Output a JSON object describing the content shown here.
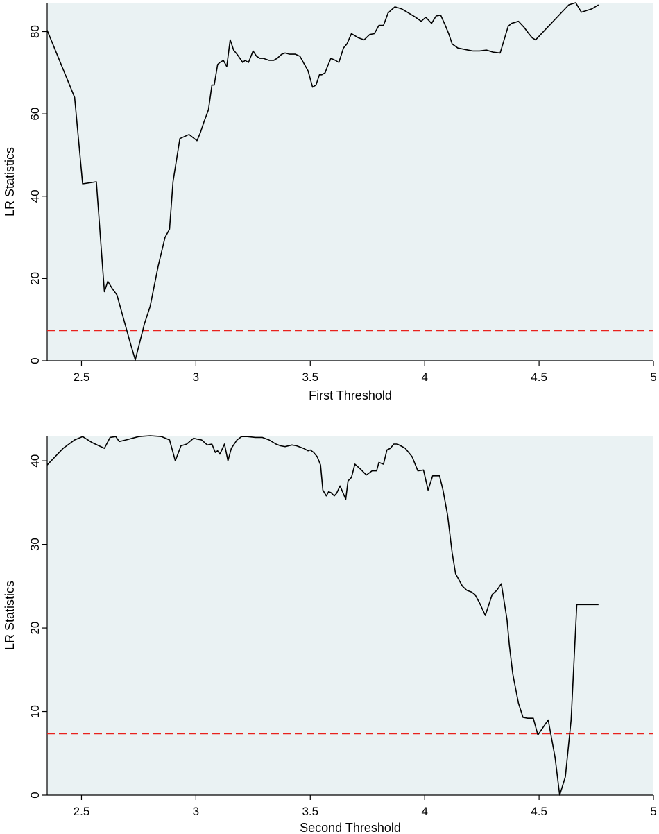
{
  "chart_data": [
    {
      "type": "line",
      "xlabel": "First Threshold",
      "ylabel": "LR Statistics",
      "xlim": [
        2.35,
        5.0
      ],
      "ylim": [
        0,
        87
      ],
      "xticks": [
        "2.5",
        "3",
        "3.5",
        "4",
        "4.5",
        "5"
      ],
      "yticks": [
        "0",
        "20",
        "40",
        "60",
        "80"
      ],
      "xtick_values": [
        2.5,
        3,
        3.5,
        4,
        4.5,
        5
      ],
      "ytick_values": [
        0,
        20,
        40,
        60,
        80
      ],
      "background_color": "#eaf2f3",
      "line_color": "#000000",
      "reference_line": {
        "y": 7.35,
        "color": "#e8221d",
        "style": "dashed"
      },
      "series": [
        {
          "x": [
            2.35,
            2.47,
            2.505,
            2.565,
            2.6,
            2.615,
            2.635,
            2.655,
            2.71,
            2.735,
            2.775,
            2.8,
            2.835,
            2.865,
            2.885,
            2.9,
            2.93,
            2.97,
            3.005,
            3.02,
            3.035,
            3.055,
            3.07,
            3.08,
            3.095,
            3.105,
            3.12,
            3.135,
            3.15,
            3.165,
            3.18,
            3.205,
            3.215,
            3.23,
            3.25,
            3.265,
            3.28,
            3.295,
            3.32,
            3.34,
            3.355,
            3.375,
            3.39,
            3.41,
            3.435,
            3.455,
            3.475,
            3.49,
            3.51,
            3.525,
            3.54,
            3.55,
            3.565,
            3.575,
            3.59,
            3.61,
            3.625,
            3.645,
            3.66,
            3.68,
            3.695,
            3.71,
            3.735,
            3.76,
            3.78,
            3.8,
            3.82,
            3.84,
            3.855,
            3.87,
            3.9,
            3.93,
            3.96,
            3.985,
            4.005,
            4.03,
            4.05,
            4.07,
            4.09,
            4.105,
            4.12,
            4.145,
            4.19,
            4.21,
            4.24,
            4.27,
            4.3,
            4.33,
            4.365,
            4.38,
            4.41,
            4.435,
            4.455,
            4.47,
            4.485,
            4.63,
            4.66,
            4.685,
            4.73,
            4.76
          ],
          "y": [
            80.3,
            64.0,
            43.0,
            43.5,
            16.8,
            19.3,
            17.5,
            16.0,
            5.0,
            0.2,
            9.0,
            13.2,
            23.0,
            30.0,
            32.0,
            43.5,
            54.0,
            55.0,
            53.5,
            55.5,
            58.0,
            61.0,
            67.0,
            67.0,
            72.0,
            72.5,
            73.0,
            71.5,
            78.0,
            75.5,
            74.5,
            72.5,
            73.0,
            72.5,
            75.3,
            74.0,
            73.5,
            73.5,
            73.0,
            73.0,
            73.5,
            74.5,
            74.8,
            74.5,
            74.5,
            74.0,
            72.0,
            70.5,
            66.5,
            67.0,
            69.5,
            69.5,
            70.0,
            71.5,
            73.5,
            73.0,
            72.5,
            76.0,
            77.0,
            79.5,
            79.0,
            78.5,
            78.0,
            79.3,
            79.5,
            81.5,
            81.5,
            84.5,
            85.3,
            86.0,
            85.5,
            84.5,
            83.5,
            82.5,
            83.5,
            82.0,
            83.8,
            84.0,
            81.5,
            79.5,
            77.0,
            76.0,
            75.5,
            75.3,
            75.3,
            75.5,
            75.0,
            74.8,
            81.3,
            82.0,
            82.5,
            81.0,
            79.5,
            78.5,
            78.0,
            86.5,
            87.0,
            84.7,
            85.5,
            86.5
          ]
        }
      ]
    },
    {
      "type": "line",
      "xlabel": "Second Threshold",
      "ylabel": "LR Statistics",
      "xlim": [
        2.35,
        5.0
      ],
      "ylim": [
        0,
        43
      ],
      "xticks": [
        "2.5",
        "3",
        "3.5",
        "4",
        "4.5",
        "5"
      ],
      "yticks": [
        "0",
        "10",
        "20",
        "30",
        "40"
      ],
      "xtick_values": [
        2.5,
        3,
        3.5,
        4,
        4.5,
        5
      ],
      "ytick_values": [
        0,
        10,
        20,
        30,
        40
      ],
      "background_color": "#eaf2f3",
      "line_color": "#000000",
      "reference_line": {
        "y": 7.35,
        "color": "#e8221d",
        "style": "dashed"
      },
      "series": [
        {
          "x": [
            2.35,
            2.42,
            2.47,
            2.505,
            2.545,
            2.6,
            2.625,
            2.65,
            2.665,
            2.695,
            2.75,
            2.8,
            2.85,
            2.885,
            2.91,
            2.935,
            2.96,
            2.99,
            3.005,
            3.025,
            3.05,
            3.07,
            3.085,
            3.095,
            3.105,
            3.125,
            3.14,
            3.155,
            3.18,
            3.2,
            3.225,
            3.26,
            3.29,
            3.32,
            3.35,
            3.37,
            3.39,
            3.42,
            3.44,
            3.47,
            3.49,
            3.5,
            3.515,
            3.53,
            3.545,
            3.555,
            3.57,
            3.58,
            3.59,
            3.605,
            3.615,
            3.63,
            3.655,
            3.665,
            3.68,
            3.695,
            3.72,
            3.745,
            3.77,
            3.79,
            3.8,
            3.82,
            3.835,
            3.85,
            3.865,
            3.88,
            3.895,
            3.915,
            3.945,
            3.97,
            3.995,
            4.015,
            4.035,
            4.05,
            4.065,
            4.08,
            4.1,
            4.12,
            4.135,
            4.145,
            4.165,
            4.185,
            4.205,
            4.22,
            4.24,
            4.265,
            4.295,
            4.315,
            4.335,
            4.36,
            4.37,
            4.385,
            4.41,
            4.43,
            4.45,
            4.475,
            4.495,
            4.515,
            4.54,
            4.57,
            4.59,
            4.615,
            4.64,
            4.665,
            4.69,
            4.72,
            4.74,
            4.76
          ],
          "y": [
            39.5,
            41.5,
            42.5,
            42.9,
            42.2,
            41.5,
            42.8,
            42.9,
            42.3,
            42.5,
            42.9,
            43.0,
            42.9,
            42.5,
            40.0,
            41.8,
            42.0,
            42.7,
            42.6,
            42.5,
            41.9,
            42.0,
            41.0,
            41.2,
            40.8,
            42.0,
            40.0,
            41.5,
            42.5,
            42.9,
            42.9,
            42.8,
            42.8,
            42.5,
            42.0,
            41.8,
            41.7,
            41.9,
            41.8,
            41.5,
            41.2,
            41.3,
            41.0,
            40.5,
            39.5,
            36.5,
            35.8,
            36.3,
            36.2,
            35.8,
            36.1,
            37.0,
            35.4,
            37.6,
            38.0,
            39.6,
            39.0,
            38.3,
            38.8,
            38.8,
            39.8,
            39.6,
            41.3,
            41.5,
            42.0,
            42.0,
            41.8,
            41.5,
            40.5,
            38.8,
            38.9,
            36.5,
            38.2,
            38.2,
            38.2,
            36.5,
            33.5,
            29.0,
            26.5,
            26.0,
            25.0,
            24.5,
            24.3,
            24.0,
            23.0,
            21.5,
            24.0,
            24.5,
            25.3,
            21.0,
            18.0,
            14.5,
            11.0,
            9.3,
            9.2,
            9.2,
            7.2,
            8.0,
            9.0,
            4.5,
            0.0,
            2.2,
            9.0,
            22.8,
            22.8,
            22.8,
            22.8,
            22.8
          ]
        }
      ]
    }
  ]
}
